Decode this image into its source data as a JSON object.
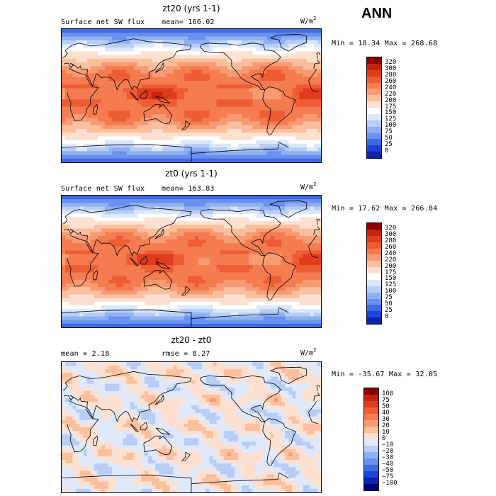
{
  "season": "ANN",
  "units_base": "W/m",
  "units_sup": "2",
  "panels": [
    {
      "title": "zt20 (yrs 1-1)",
      "variable": "Surface net SW flux",
      "stat_text": "mean= 166.02",
      "minmax": "Min =  18.34 Max = 268.68",
      "kind": "field"
    },
    {
      "title": "zt0 (yrs 1-1)",
      "variable": "Surface net SW flux",
      "stat_text": "mean= 163.83",
      "minmax": "Min =  17.62 Max = 266.84",
      "kind": "field"
    },
    {
      "title": "zt20 - zt0",
      "variable": "mean =   2.18",
      "stat_text": "rmse =   8.27",
      "minmax": "Min = -35.67 Max =  32.05",
      "kind": "diff"
    }
  ],
  "colorbars": {
    "field": {
      "labels": [
        "320",
        "300",
        "280",
        "260",
        "240",
        "220",
        "200",
        "175",
        "150",
        "125",
        "100",
        "75",
        "50",
        "25",
        "0"
      ],
      "colors": [
        "#8b0000",
        "#c4230f",
        "#df3c1d",
        "#ee5c34",
        "#f47c50",
        "#f89b72",
        "#fbbf9e",
        "#fde0cf",
        "#ffffff",
        "#dbe7fb",
        "#b7cdf6",
        "#8fb0f2",
        "#6a91ee",
        "#3e6ae6",
        "#1b43d9",
        "#0b24a8"
      ]
    },
    "diff": {
      "labels": [
        "100",
        "75",
        "50",
        "40",
        "30",
        "20",
        "10",
        "0",
        "−10",
        "−20",
        "−30",
        "−40",
        "−50",
        "−75",
        "−100"
      ],
      "colors": [
        "#8b0000",
        "#c4230f",
        "#df3c1d",
        "#ee5c34",
        "#f47c50",
        "#f89b72",
        "#fbbf9e",
        "#fde0cf",
        "#dfe9fb",
        "#b7cdf6",
        "#8fb0f2",
        "#6a91ee",
        "#3e6ae6",
        "#1b43d9",
        "#0b24a8",
        "#00007f"
      ]
    }
  }
}
